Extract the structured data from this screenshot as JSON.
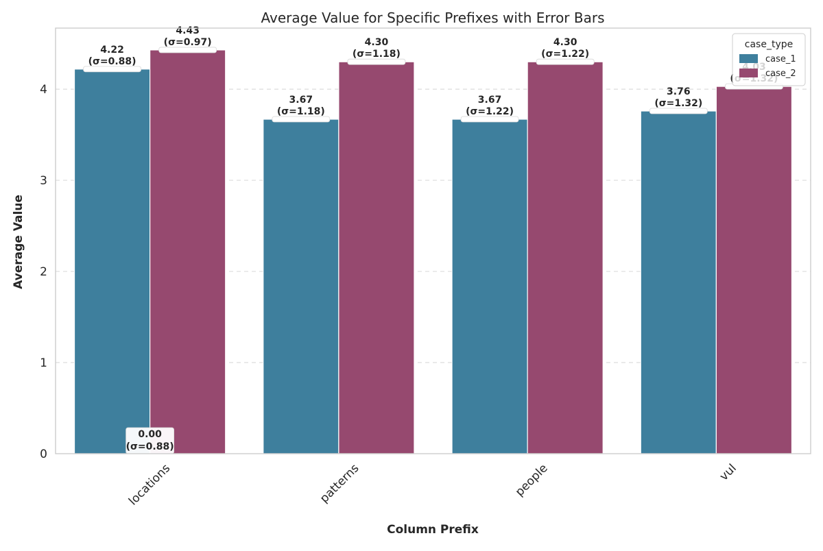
{
  "chart_data": {
    "type": "bar",
    "title": "Average Value for Specific Prefixes with Error Bars",
    "xlabel": "Column Prefix",
    "ylabel": "Average Value",
    "categories": [
      "locations",
      "patterns",
      "people",
      "vul"
    ],
    "ylim": [
      0,
      4.67
    ],
    "yticks": [
      0,
      1,
      2,
      3,
      4
    ],
    "grid": "horizontal dashed",
    "legend": {
      "title": "case_type",
      "placement": "top-right"
    },
    "series": [
      {
        "name": "case_1",
        "color": "#3e7f9d",
        "values": [
          4.22,
          3.67,
          3.67,
          3.76
        ],
        "std": [
          0.88,
          1.18,
          1.22,
          1.32
        ],
        "labels": [
          "4.22",
          "3.67",
          "3.67",
          "3.76"
        ],
        "std_labels": [
          "(σ=0.88)",
          "(σ=1.18)",
          "(σ=1.22)",
          "(σ=1.32)"
        ]
      },
      {
        "name": "case_2",
        "color": "#96496f",
        "values": [
          4.43,
          4.3,
          4.3,
          4.03
        ],
        "std": [
          0.97,
          1.18,
          1.22,
          1.32
        ],
        "labels": [
          "4.43",
          "4.30",
          "4.30",
          "4.03"
        ],
        "std_labels": [
          "(σ=0.97)",
          "(σ=1.18)",
          "(σ=1.22)",
          "(σ=1.32)"
        ]
      }
    ],
    "extra_labels": [
      {
        "category": "locations",
        "value": 0,
        "label": "0.00",
        "std_label": "(σ=0.88)"
      }
    ]
  }
}
